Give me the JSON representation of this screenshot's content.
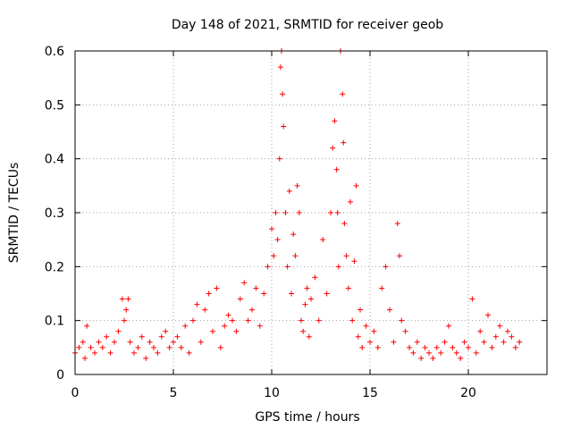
{
  "chart_data": {
    "type": "scatter",
    "title": "Day 148 of 2021, SRMTID for receiver geob",
    "xlabel": "GPS time / hours",
    "ylabel": "SRMTID / TECUs",
    "xlim": [
      0,
      24
    ],
    "ylim": [
      0,
      0.6
    ],
    "xticks": [
      0,
      5,
      10,
      15,
      20
    ],
    "yticks": [
      0,
      0.1,
      0.2,
      0.3,
      0.4,
      0.5,
      0.6
    ],
    "xtick_labels": [
      "0",
      "5",
      "10",
      "15",
      "20"
    ],
    "ytick_labels": [
      "0",
      "0.1",
      "0.2",
      "0.3",
      "0.4",
      "0.5",
      "0.6"
    ],
    "grid": true,
    "marker": "+",
    "color": "#ff0000",
    "series": [
      {
        "name": "SRMTID",
        "x": [
          0.0,
          0.2,
          0.4,
          0.5,
          0.6,
          0.8,
          1.0,
          1.2,
          1.4,
          1.6,
          1.8,
          2.0,
          2.2,
          2.4,
          2.5,
          2.6,
          2.7,
          2.8,
          3.0,
          3.2,
          3.4,
          3.6,
          3.8,
          4.0,
          4.2,
          4.4,
          4.6,
          4.8,
          5.0,
          5.2,
          5.4,
          5.6,
          5.8,
          6.0,
          6.2,
          6.4,
          6.6,
          6.8,
          7.0,
          7.2,
          7.4,
          7.6,
          7.8,
          8.0,
          8.2,
          8.4,
          8.6,
          8.8,
          9.0,
          9.2,
          9.4,
          9.6,
          9.8,
          10.0,
          10.1,
          10.2,
          10.3,
          10.4,
          10.45,
          10.5,
          10.55,
          10.6,
          10.7,
          10.8,
          10.9,
          11.0,
          11.1,
          11.2,
          11.3,
          11.4,
          11.5,
          11.6,
          11.7,
          11.8,
          11.9,
          12.0,
          12.2,
          12.4,
          12.6,
          12.8,
          13.0,
          13.1,
          13.2,
          13.3,
          13.35,
          13.4,
          13.5,
          13.6,
          13.65,
          13.7,
          13.8,
          13.9,
          14.0,
          14.1,
          14.2,
          14.3,
          14.4,
          14.5,
          14.6,
          14.8,
          15.0,
          15.2,
          15.4,
          15.6,
          15.8,
          16.0,
          16.2,
          16.4,
          16.5,
          16.6,
          16.8,
          17.0,
          17.2,
          17.4,
          17.6,
          17.8,
          18.0,
          18.2,
          18.4,
          18.6,
          18.8,
          19.0,
          19.2,
          19.4,
          19.6,
          19.8,
          20.0,
          20.2,
          20.4,
          20.6,
          20.8,
          21.0,
          21.2,
          21.4,
          21.6,
          21.8,
          22.0,
          22.2,
          22.4,
          22.6
        ],
        "values": [
          0.04,
          0.05,
          0.06,
          0.03,
          0.09,
          0.05,
          0.04,
          0.06,
          0.05,
          0.07,
          0.04,
          0.06,
          0.08,
          0.14,
          0.1,
          0.12,
          0.14,
          0.06,
          0.04,
          0.05,
          0.07,
          0.03,
          0.06,
          0.05,
          0.04,
          0.07,
          0.08,
          0.05,
          0.06,
          0.07,
          0.05,
          0.09,
          0.04,
          0.1,
          0.13,
          0.06,
          0.12,
          0.15,
          0.08,
          0.16,
          0.05,
          0.09,
          0.11,
          0.1,
          0.08,
          0.14,
          0.17,
          0.1,
          0.12,
          0.16,
          0.09,
          0.15,
          0.2,
          0.27,
          0.22,
          0.3,
          0.25,
          0.4,
          0.57,
          0.6,
          0.52,
          0.46,
          0.3,
          0.2,
          0.34,
          0.15,
          0.26,
          0.22,
          0.35,
          0.3,
          0.1,
          0.08,
          0.13,
          0.16,
          0.07,
          0.14,
          0.18,
          0.1,
          0.25,
          0.15,
          0.3,
          0.42,
          0.47,
          0.38,
          0.3,
          0.2,
          0.6,
          0.52,
          0.43,
          0.28,
          0.22,
          0.16,
          0.32,
          0.1,
          0.21,
          0.35,
          0.07,
          0.12,
          0.05,
          0.09,
          0.06,
          0.08,
          0.05,
          0.16,
          0.2,
          0.12,
          0.06,
          0.28,
          0.22,
          0.1,
          0.08,
          0.05,
          0.04,
          0.06,
          0.03,
          0.05,
          0.04,
          0.03,
          0.05,
          0.04,
          0.06,
          0.09,
          0.05,
          0.04,
          0.03,
          0.06,
          0.05,
          0.14,
          0.04,
          0.08,
          0.06,
          0.11,
          0.05,
          0.07,
          0.09,
          0.06,
          0.08,
          0.07,
          0.05,
          0.06
        ]
      }
    ]
  }
}
